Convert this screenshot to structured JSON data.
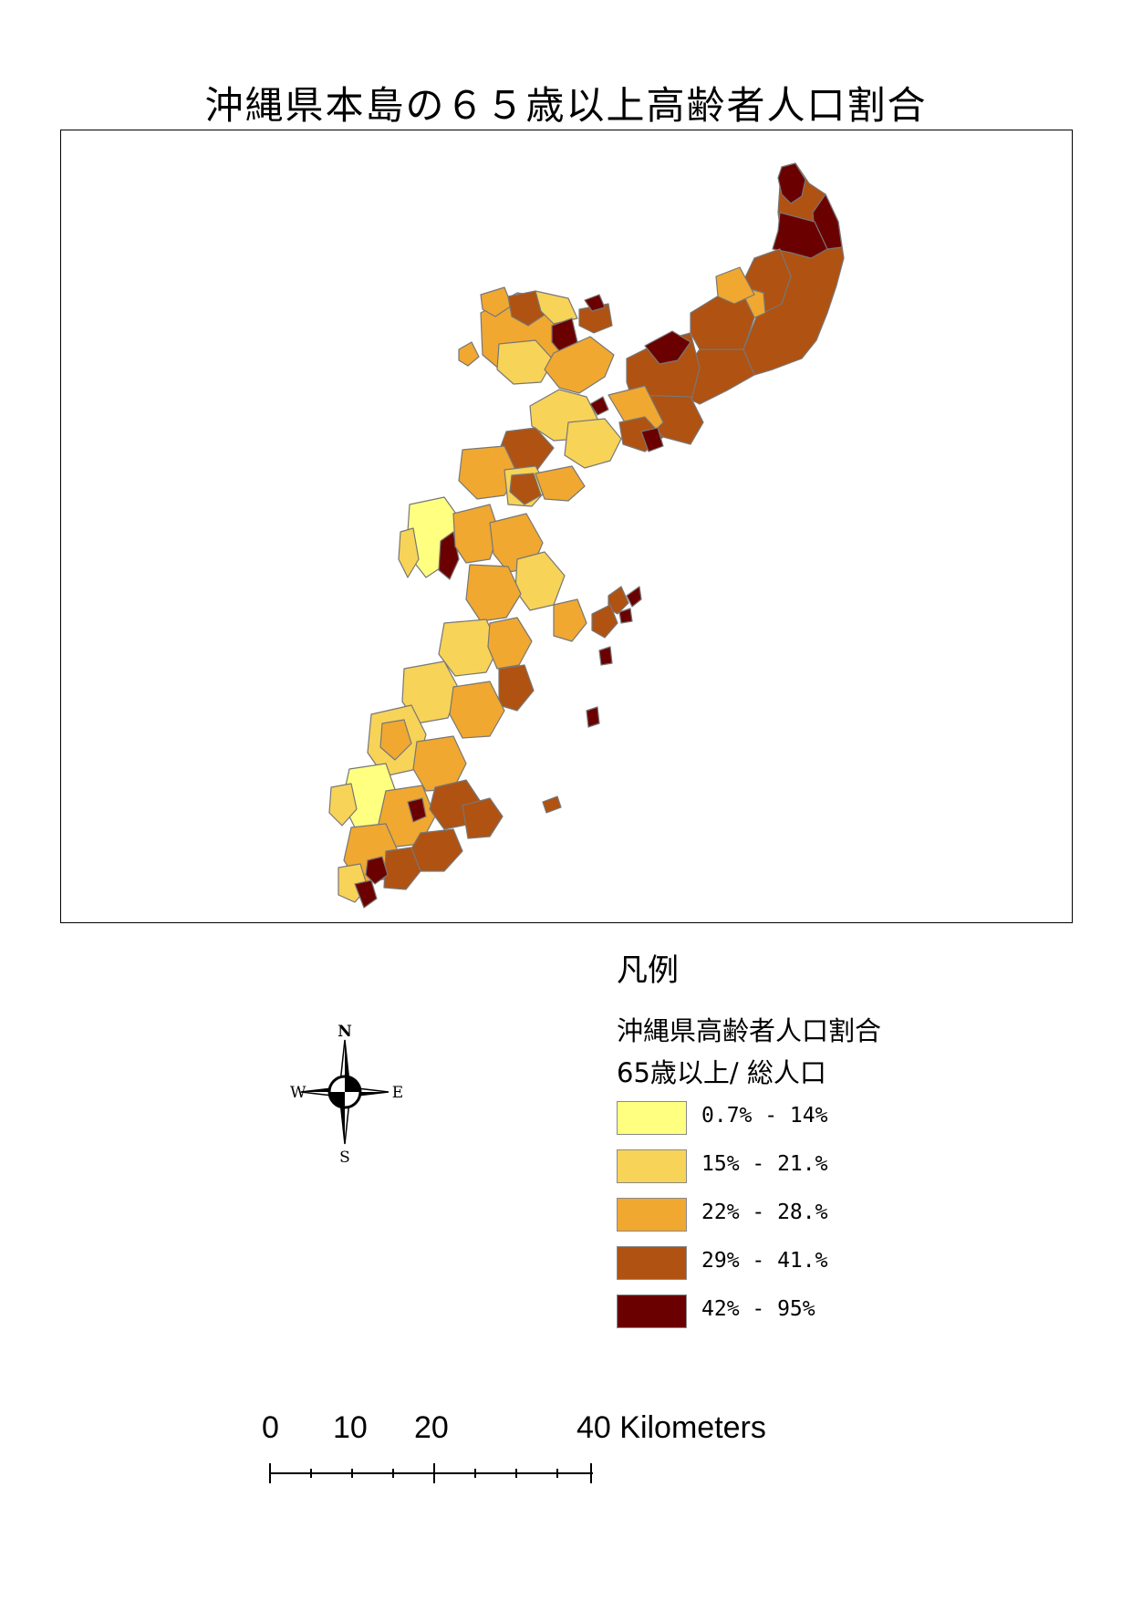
{
  "title": "沖縄県本島の６５歳以上高齢者人口割合",
  "legend": {
    "heading": "凡例",
    "layer_name": "沖縄県高齢者人口割合",
    "field_name": "65歳以上/ 総人口",
    "classes": [
      {
        "label": "0.7% - 14%",
        "color": "#ffff80"
      },
      {
        "label": "15% - 21.%",
        "color": "#f7d358"
      },
      {
        "label": "22% - 28.%",
        "color": "#f0a830"
      },
      {
        "label": "29% - 41.%",
        "color": "#b05212"
      },
      {
        "label": "42% - 95%",
        "color": "#6b0000"
      }
    ]
  },
  "north_arrow": {
    "n": "N",
    "s": "S",
    "e": "E",
    "w": "W"
  },
  "scalebar": {
    "labels": [
      "0",
      "10",
      "20",
      "40 Kilometers"
    ]
  },
  "map": {
    "subject": "Okinawa main island municipalities / districts choropleth",
    "boundary_color": "#777777"
  }
}
